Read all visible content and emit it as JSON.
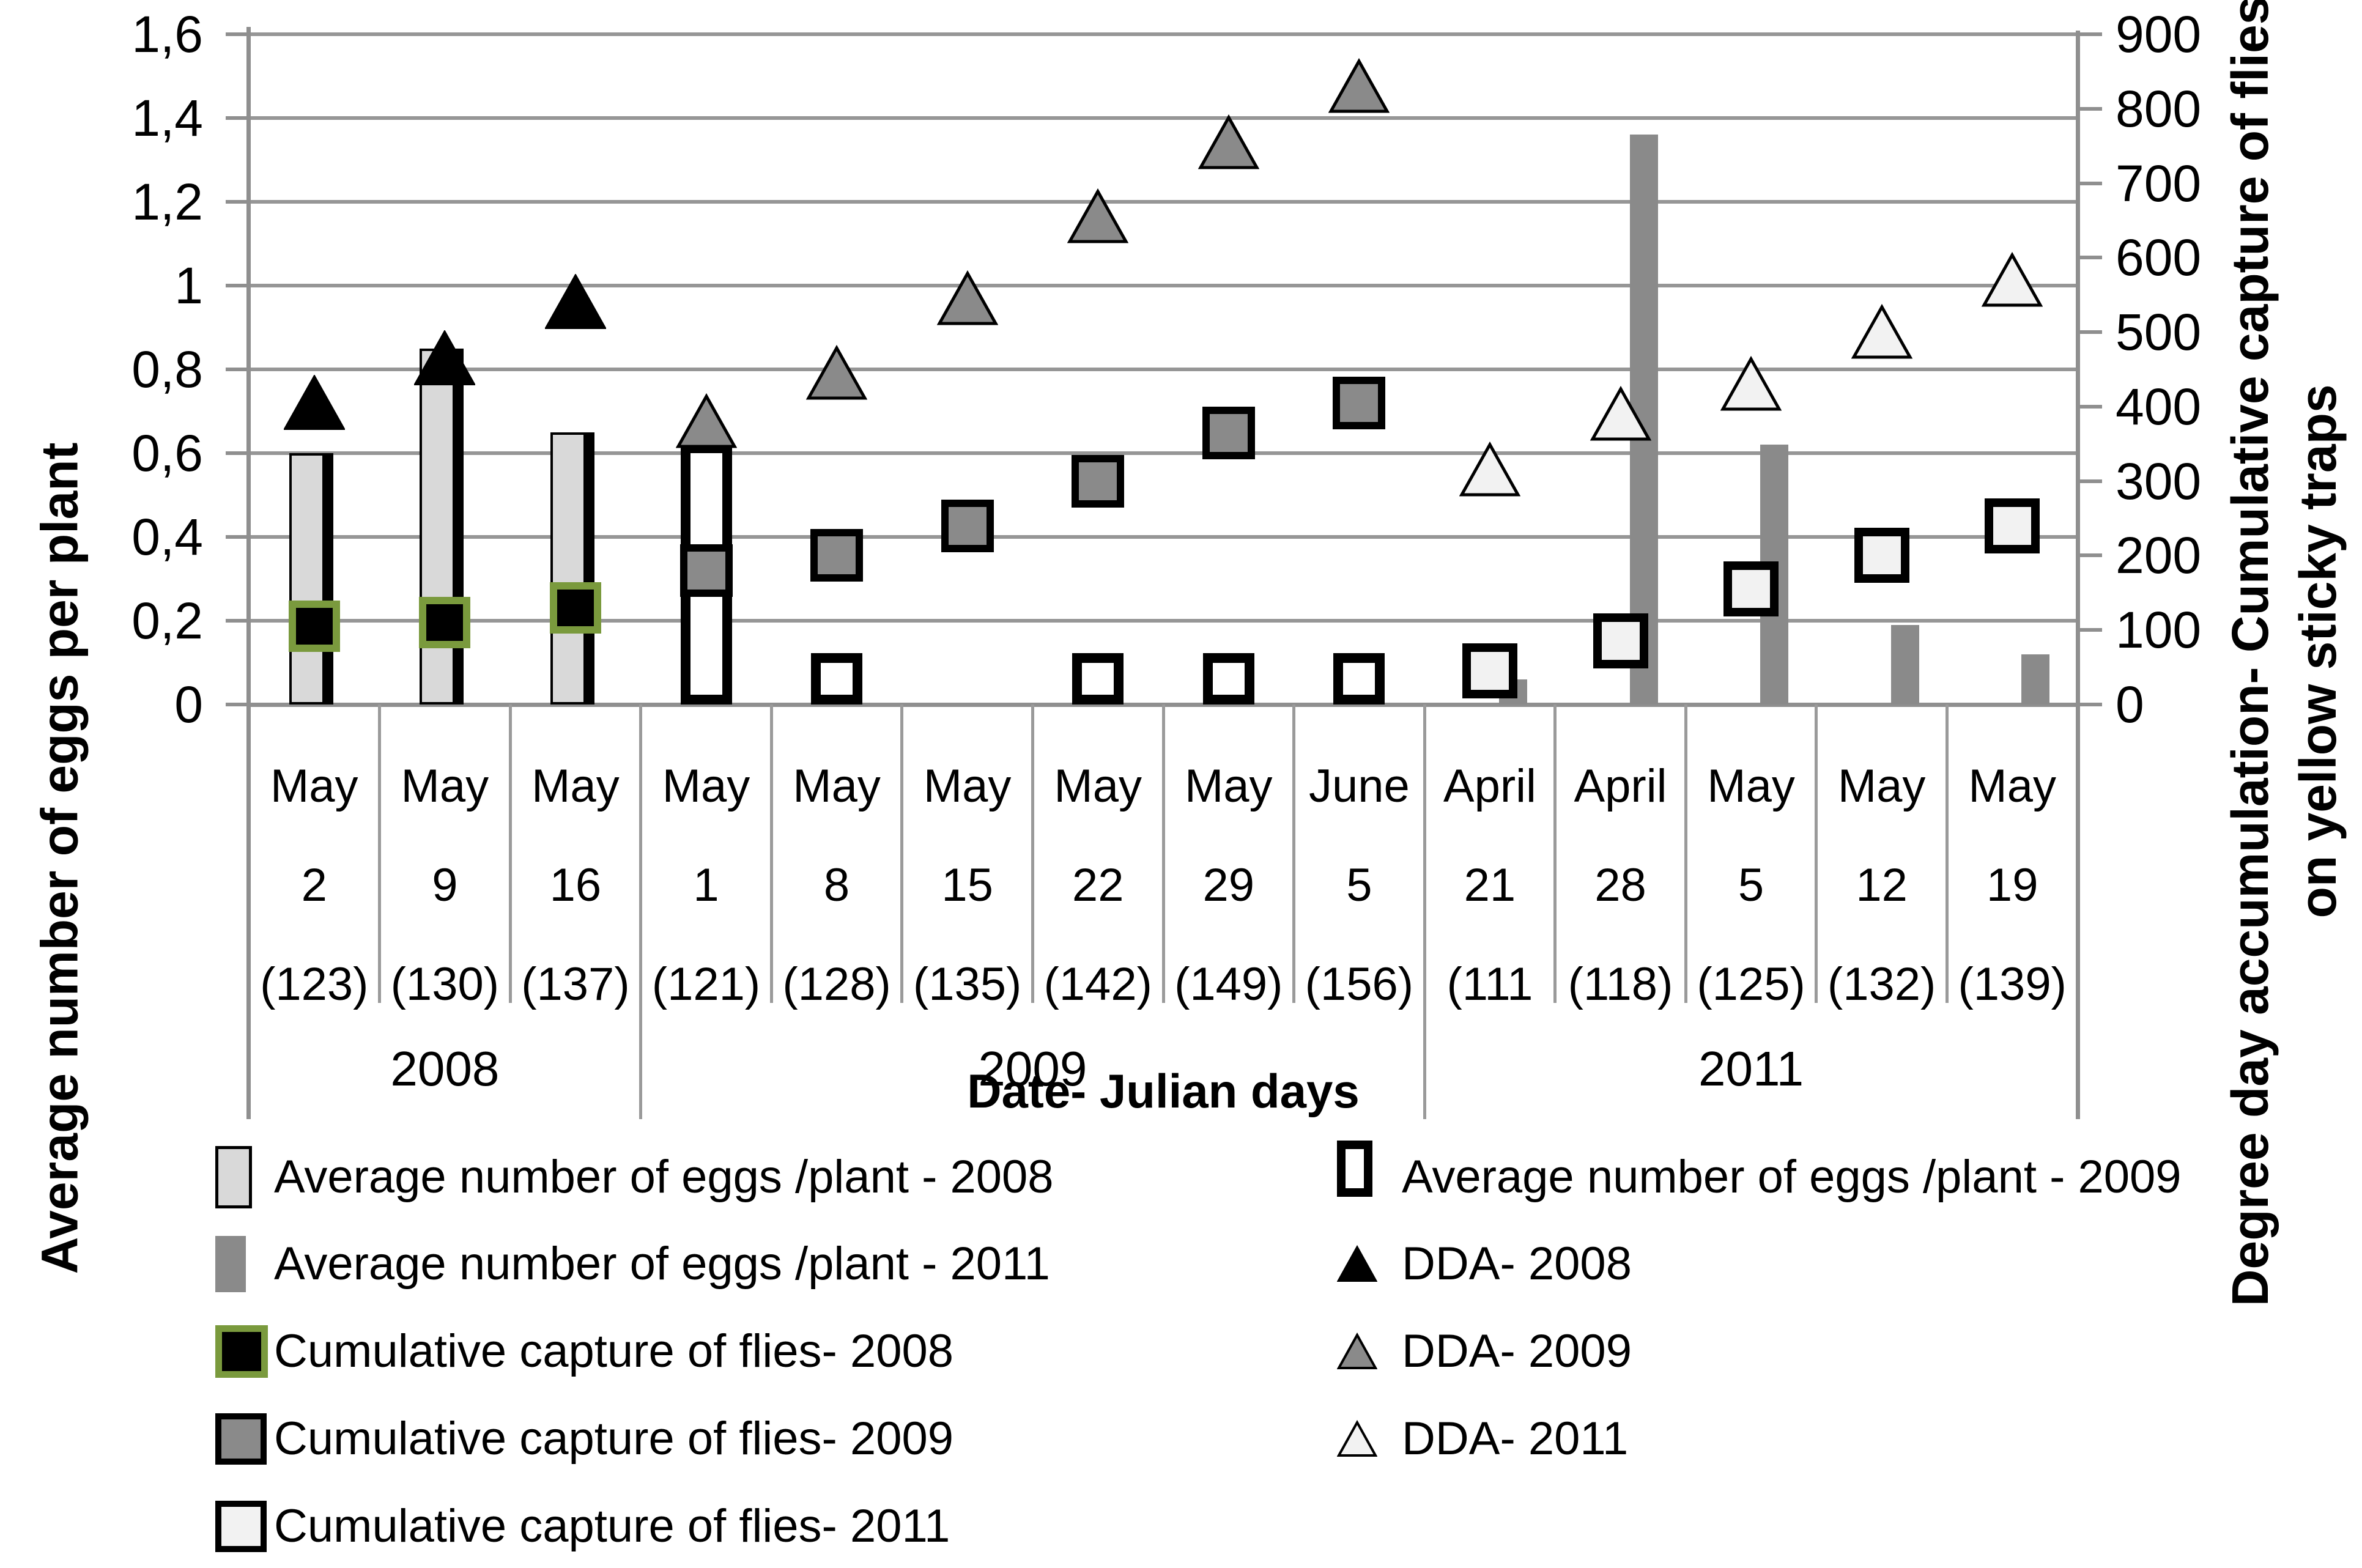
{
  "chart_data": {
    "type": "combo: clustered bars (left axis) + square/triangle scatter markers (right axis), dual y-axis",
    "title": "",
    "xlabel": "Date- Julian days",
    "ylabel_left": "Average number of eggs per plant",
    "ylabel_right_line1": "Degree day accumulation- Cumulative capture of flies",
    "ylabel_right_line2": "on yellow sticky traps",
    "left_ylim": [
      0,
      1.6
    ],
    "right_ylim": [
      0,
      900
    ],
    "left_tick_labels": [
      "0",
      "0,2",
      "0,4",
      "0,6",
      "0,8",
      "1",
      "1,2",
      "1,4",
      "1,6"
    ],
    "right_tick_labels": [
      "0",
      "100",
      "200",
      "300",
      "400",
      "500",
      "600",
      "700",
      "800",
      "900"
    ],
    "grid": "horizontal gridlines every 0.2 left-axis units",
    "categories": [
      {
        "month": "May",
        "day": "2",
        "julian": "(123)"
      },
      {
        "month": "May",
        "day": "9",
        "julian": "(130)"
      },
      {
        "month": "May",
        "day": "16",
        "julian": "(137)"
      },
      {
        "month": "May",
        "day": "1",
        "julian": "(121)"
      },
      {
        "month": "May",
        "day": "8",
        "julian": "(128)"
      },
      {
        "month": "May",
        "day": "15",
        "julian": "(135)"
      },
      {
        "month": "May",
        "day": "22",
        "julian": "(142)"
      },
      {
        "month": "May",
        "day": "29",
        "julian": "(149)"
      },
      {
        "month": "June",
        "day": "5",
        "julian": "(156)"
      },
      {
        "month": "April",
        "day": "21",
        "julian": "(111"
      },
      {
        "month": "April",
        "day": "28",
        "julian": "(118)"
      },
      {
        "month": "May",
        "day": "5",
        "julian": "(125)"
      },
      {
        "month": "May",
        "day": "12",
        "julian": "(132)"
      },
      {
        "month": "May",
        "day": "19",
        "julian": "(139)"
      }
    ],
    "year_groups": [
      {
        "label": "2008",
        "start": 0,
        "end": 3
      },
      {
        "label": "2009",
        "start": 3,
        "end": 9
      },
      {
        "label": "2011",
        "start": 9,
        "end": 14
      }
    ],
    "series": [
      {
        "id": "eggs2008",
        "name": "Average number of eggs /plant - 2008",
        "type": "bar",
        "axis": "left",
        "values": [
          0.6,
          0.85,
          0.65,
          null,
          null,
          null,
          null,
          null,
          null,
          null,
          null,
          null,
          null,
          null
        ]
      },
      {
        "id": "eggs2009",
        "name": "Average number of eggs /plant - 2009",
        "type": "bar",
        "axis": "left",
        "values": [
          null,
          null,
          null,
          0.6,
          0.1,
          null,
          0.1,
          0.1,
          0.1,
          null,
          null,
          null,
          null,
          null
        ]
      },
      {
        "id": "eggs2011",
        "name": "Average number of eggs /plant - 2011",
        "type": "bar",
        "axis": "left",
        "values": [
          null,
          null,
          null,
          null,
          null,
          null,
          null,
          null,
          null,
          0.06,
          1.36,
          0.62,
          0.19,
          0.12
        ]
      },
      {
        "id": "cum2008",
        "name": "Cumulative capture of flies- 2008",
        "type": "square",
        "axis": "right",
        "values": [
          105,
          110,
          130,
          null,
          null,
          null,
          null,
          null,
          null,
          null,
          null,
          null,
          null,
          null
        ]
      },
      {
        "id": "cum2009",
        "name": "Cumulative capture of flies- 2009",
        "type": "square",
        "axis": "right",
        "values": [
          null,
          null,
          null,
          180,
          200,
          240,
          300,
          365,
          405,
          null,
          null,
          null,
          null,
          null
        ]
      },
      {
        "id": "cum2011",
        "name": "Cumulative capture of flies- 2011",
        "type": "square",
        "axis": "right",
        "values": [
          null,
          null,
          null,
          null,
          null,
          null,
          null,
          null,
          null,
          45,
          85,
          155,
          200,
          240
        ]
      },
      {
        "id": "dda2008",
        "name": "DDA- 2008",
        "type": "triangle",
        "axis": "right",
        "values": [
          405,
          465,
          540,
          null,
          null,
          null,
          null,
          null,
          null,
          null,
          null,
          null,
          null,
          null
        ]
      },
      {
        "id": "dda2009",
        "name": "DDA- 2009",
        "type": "triangle",
        "axis": "right",
        "values": [
          null,
          null,
          null,
          380,
          445,
          545,
          655,
          755,
          830,
          null,
          null,
          null,
          null,
          null
        ]
      },
      {
        "id": "dda2011",
        "name": "DDA- 2011",
        "type": "triangle",
        "axis": "right",
        "values": [
          null,
          null,
          null,
          null,
          null,
          null,
          null,
          null,
          null,
          315,
          390,
          430,
          500,
          570
        ]
      }
    ]
  },
  "legend": {
    "left_column": [
      {
        "swatch": "bar-light",
        "label": "Average number of eggs /plant - 2008"
      },
      {
        "swatch": "bar-gray",
        "label": "Average number of eggs /plant - 2011"
      },
      {
        "swatch": "sq-green",
        "label": "Cumulative capture of flies- 2008"
      },
      {
        "swatch": "sq-gray",
        "label": "Cumulative capture of flies- 2009"
      },
      {
        "swatch": "sq-white",
        "label": "Cumulative capture of flies- 2011"
      }
    ],
    "right_column": [
      {
        "swatch": "bar-outline",
        "label": "Average number of eggs /plant - 2009"
      },
      {
        "swatch": "tri-black",
        "label": "DDA- 2008"
      },
      {
        "swatch": "tri-gray",
        "label": "DDA- 2009"
      },
      {
        "swatch": "tri-white",
        "label": "DDA- 2011"
      }
    ]
  },
  "colors": {
    "bar_2008_fill": "#d9d9d9",
    "bar_2009_fill": "#ffffff",
    "bar_2011_fill": "#8a8a8a",
    "square_2008_fill": "#000000",
    "square_2008_border": "#7a9a3d",
    "square_2009_fill": "#8a8a8a",
    "square_2011_fill": "#f2f2f2",
    "triangle_2008_fill": "#000000",
    "triangle_2009_fill": "#8a8a8a",
    "triangle_2011_fill": "#f2f2f2",
    "grid": "#969696",
    "text": "#000000"
  }
}
